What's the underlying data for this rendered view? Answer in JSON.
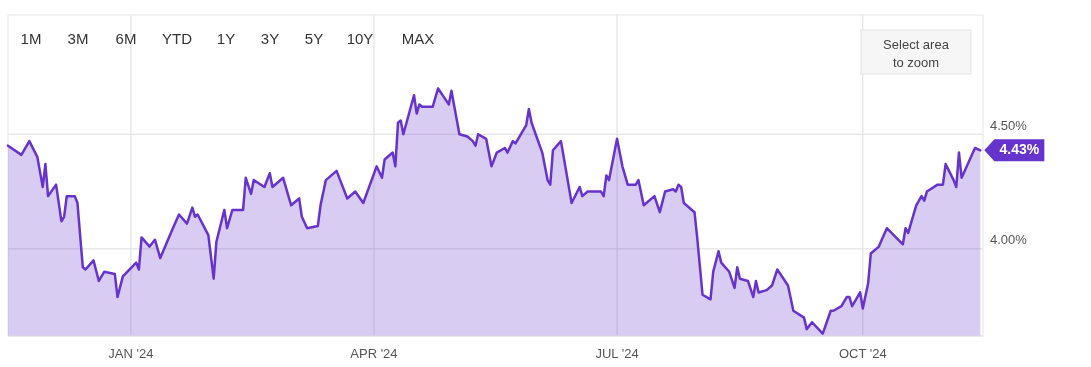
{
  "chart_data": {
    "type": "area",
    "x": [
      "2023-11-16",
      "2023-11-21",
      "2023-11-24",
      "2023-11-27",
      "2023-11-29",
      "2023-11-30",
      "2023-12-01",
      "2023-12-04",
      "2023-12-06",
      "2023-12-07",
      "2023-12-08",
      "2023-12-11",
      "2023-12-12",
      "2023-12-14",
      "2023-12-15",
      "2023-12-18",
      "2023-12-20",
      "2023-12-22",
      "2023-12-26",
      "2023-12-27",
      "2023-12-29",
      "2024-01-03",
      "2024-01-04",
      "2024-01-05",
      "2024-01-08",
      "2024-01-10",
      "2024-01-12",
      "2024-01-16",
      "2024-01-19",
      "2024-01-22",
      "2024-01-24",
      "2024-01-25",
      "2024-01-26",
      "2024-01-30",
      "2024-02-01",
      "2024-02-02",
      "2024-02-05",
      "2024-02-06",
      "2024-02-08",
      "2024-02-12",
      "2024-02-13",
      "2024-02-15",
      "2024-02-16",
      "2024-02-20",
      "2024-02-22",
      "2024-02-23",
      "2024-02-27",
      "2024-03-01",
      "2024-03-04",
      "2024-03-05",
      "2024-03-07",
      "2024-03-11",
      "2024-03-12",
      "2024-03-14",
      "2024-03-18",
      "2024-03-20",
      "2024-03-22",
      "2024-03-25",
      "2024-03-28",
      "2024-04-02",
      "2024-04-04",
      "2024-04-05",
      "2024-04-08",
      "2024-04-09",
      "2024-04-10",
      "2024-04-11",
      "2024-04-12",
      "2024-04-16",
      "2024-04-17",
      "2024-04-18",
      "2024-04-19",
      "2024-04-23",
      "2024-04-25",
      "2024-04-29",
      "2024-04-30",
      "2024-05-03",
      "2024-05-06",
      "2024-05-08",
      "2024-05-09",
      "2024-05-10",
      "2024-05-13",
      "2024-05-15",
      "2024-05-17",
      "2024-05-20",
      "2024-05-21",
      "2024-05-23",
      "2024-05-24",
      "2024-05-28",
      "2024-05-29",
      "2024-05-30",
      "2024-06-03",
      "2024-06-05",
      "2024-06-06",
      "2024-06-07",
      "2024-06-10",
      "2024-06-14",
      "2024-06-17",
      "2024-06-18",
      "2024-06-20",
      "2024-06-25",
      "2024-06-26",
      "2024-06-27",
      "2024-06-28",
      "2024-07-01",
      "2024-07-03",
      "2024-07-05",
      "2024-07-08",
      "2024-07-09",
      "2024-07-11",
      "2024-07-15",
      "2024-07-17",
      "2024-07-19",
      "2024-07-22",
      "2024-07-23",
      "2024-07-24",
      "2024-07-25",
      "2024-07-26",
      "2024-07-30",
      "2024-07-31",
      "2024-08-02",
      "2024-08-05",
      "2024-08-06",
      "2024-08-08",
      "2024-08-09",
      "2024-08-12",
      "2024-08-14",
      "2024-08-15",
      "2024-08-16",
      "2024-08-19",
      "2024-08-21",
      "2024-08-22",
      "2024-08-23",
      "2024-08-26",
      "2024-08-28",
      "2024-08-30",
      "2024-09-03",
      "2024-09-05",
      "2024-09-09",
      "2024-09-10",
      "2024-09-12",
      "2024-09-16",
      "2024-09-19",
      "2024-09-20",
      "2024-09-23",
      "2024-09-25",
      "2024-09-26",
      "2024-09-27",
      "2024-09-30",
      "2024-10-01",
      "2024-10-03",
      "2024-10-04",
      "2024-10-07",
      "2024-10-10",
      "2024-10-16",
      "2024-10-17",
      "2024-10-18",
      "2024-10-21",
      "2024-10-23",
      "2024-10-24",
      "2024-10-25",
      "2024-10-29",
      "2024-10-31",
      "2024-11-01",
      "2024-11-04",
      "2024-11-05",
      "2024-11-06",
      "2024-11-07",
      "2024-11-12",
      "2024-11-14"
    ],
    "series": [
      {
        "color": "#6633cc",
        "values": [
          4.45,
          4.41,
          4.47,
          4.4,
          4.27,
          4.37,
          4.23,
          4.28,
          4.12,
          4.14,
          4.23,
          4.23,
          4.2,
          3.92,
          3.91,
          3.95,
          3.86,
          3.9,
          3.89,
          3.79,
          3.88,
          3.94,
          3.91,
          4.05,
          4.01,
          4.04,
          3.96,
          4.07,
          4.15,
          4.11,
          4.18,
          4.14,
          4.15,
          4.06,
          3.87,
          4.03,
          4.17,
          4.09,
          4.17,
          4.17,
          4.31,
          4.24,
          4.3,
          4.27,
          4.33,
          4.27,
          4.31,
          4.19,
          4.22,
          4.14,
          4.09,
          4.1,
          4.19,
          4.3,
          4.34,
          4.28,
          4.22,
          4.25,
          4.2,
          4.36,
          4.31,
          4.39,
          4.42,
          4.36,
          4.55,
          4.56,
          4.5,
          4.67,
          4.59,
          4.63,
          4.62,
          4.62,
          4.7,
          4.63,
          4.69,
          4.5,
          4.49,
          4.47,
          4.45,
          4.5,
          4.48,
          4.36,
          4.42,
          4.44,
          4.42,
          4.47,
          4.46,
          4.54,
          4.61,
          4.55,
          4.42,
          4.3,
          4.28,
          4.43,
          4.47,
          4.2,
          4.27,
          4.23,
          4.25,
          4.25,
          4.23,
          4.32,
          4.3,
          4.48,
          4.36,
          4.28,
          4.28,
          4.3,
          4.19,
          4.23,
          4.16,
          4.25,
          4.26,
          4.25,
          4.28,
          4.27,
          4.2,
          4.16,
          4.05,
          3.8,
          3.78,
          3.9,
          3.99,
          3.94,
          3.9,
          3.83,
          3.92,
          3.87,
          3.86,
          3.79,
          3.86,
          3.81,
          3.82,
          3.84,
          3.91,
          3.84,
          3.73,
          3.7,
          3.65,
          3.68,
          3.63,
          3.73,
          3.73,
          3.75,
          3.79,
          3.79,
          3.75,
          3.81,
          3.74,
          3.85,
          3.98,
          4.01,
          4.09,
          4.02,
          4.09,
          4.07,
          4.19,
          4.23,
          4.21,
          4.25,
          4.28,
          4.28,
          4.37,
          4.3,
          4.27,
          4.42,
          4.31,
          4.44,
          4.43
        ]
      }
    ],
    "xlim": [
      "2023-11-16",
      "2024-11-15"
    ],
    "xticks": [
      {
        "value": "2024-01-01",
        "label": "JAN '24"
      },
      {
        "value": "2024-04-01",
        "label": "APR '24"
      },
      {
        "value": "2024-07-01",
        "label": "JUL '24"
      },
      {
        "value": "2024-10-01",
        "label": "OCT '24"
      }
    ],
    "ylim": [
      3.62,
      5.02
    ],
    "yticks": [
      {
        "value": 4.0,
        "label": "4.00%"
      },
      {
        "value": 4.5,
        "label": "4.50%"
      }
    ],
    "grid": true,
    "annotations": [
      "1M",
      "3M",
      "6M",
      "YTD",
      "1Y",
      "3Y",
      "5Y",
      "10Y",
      "MAX",
      "Select area to zoom",
      {
        "text": "4.43%",
        "x": "2024-11-14",
        "y": 4.43
      }
    ]
  }
}
